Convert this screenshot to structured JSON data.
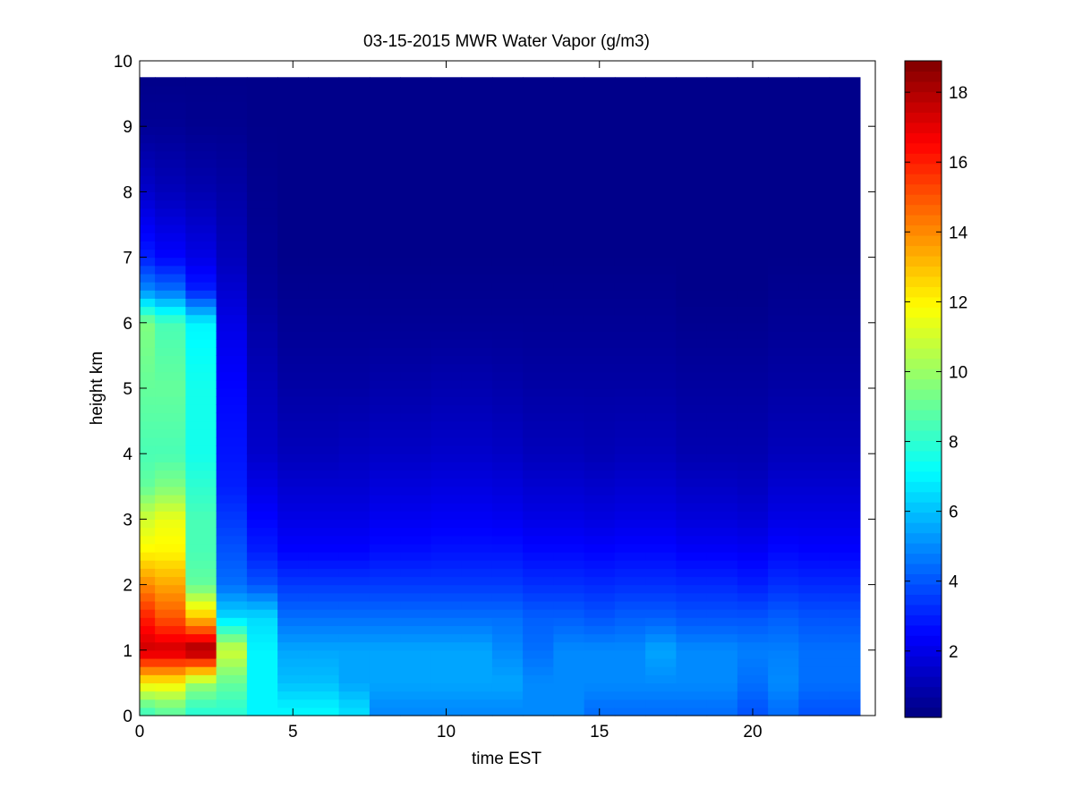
{
  "chart_data": {
    "type": "heatmap",
    "title": "03-15-2015 MWR Water Vapor (g/m3)",
    "xlabel": "time EST",
    "ylabel": "height km",
    "xlim": [
      0,
      24
    ],
    "ylim": [
      0,
      10
    ],
    "x_ticks": [
      0,
      5,
      10,
      15,
      20
    ],
    "y_ticks": [
      0,
      1,
      2,
      3,
      4,
      5,
      6,
      7,
      8,
      9,
      10
    ],
    "colormap": "jet",
    "colorbar": {
      "range": [
        0.1,
        18.9
      ],
      "ticks": [
        2,
        4,
        6,
        8,
        10,
        12,
        14,
        16,
        18
      ],
      "placement": "right"
    },
    "data_extent": {
      "x": [
        0,
        23.5
      ],
      "y": [
        0,
        9.75
      ]
    },
    "x": [
      0,
      1,
      2,
      3,
      4,
      5,
      6,
      7,
      8,
      9,
      10,
      11,
      12,
      13,
      14,
      15,
      16,
      17,
      18,
      19,
      20,
      21,
      22,
      23
    ],
    "y_levels": [
      0.1,
      0.5,
      1.0,
      1.5,
      2.0,
      2.5,
      3.0,
      3.5,
      4.0,
      5.0,
      6.0,
      6.5,
      7.0,
      8.0,
      9.0,
      9.75
    ],
    "profiles": [
      [
        8.5,
        12,
        17.5,
        16,
        14,
        12,
        11,
        9,
        8.5,
        9,
        9.5,
        5,
        3,
        1.5,
        0.5,
        0.3
      ],
      [
        9,
        12,
        17.5,
        15,
        13.5,
        12,
        11.5,
        9.5,
        8.5,
        9,
        8.5,
        4.5,
        2.5,
        1.2,
        0.5,
        0.3
      ],
      [
        8,
        10,
        18.5,
        13,
        9,
        8.5,
        8.5,
        8,
        7.5,
        7.5,
        7,
        3,
        2,
        1,
        0.4,
        0.3
      ],
      [
        8,
        9,
        11,
        6.5,
        4.5,
        4,
        3.5,
        3,
        2.8,
        2.5,
        2,
        1.6,
        1.2,
        0.8,
        0.4,
        0.3
      ],
      [
        7,
        7,
        7,
        6.5,
        4,
        3,
        2.5,
        2,
        1.5,
        1.2,
        0.8,
        0.6,
        0.5,
        0.4,
        0.3,
        0.3
      ],
      [
        7,
        6,
        5.5,
        4.5,
        3.5,
        2.5,
        2,
        1.6,
        1.2,
        0.8,
        0.5,
        0.4,
        0.3,
        0.3,
        0.3,
        0.3
      ],
      [
        7,
        6,
        5.5,
        4.5,
        3.5,
        2.5,
        2,
        1.6,
        1.2,
        0.8,
        0.5,
        0.4,
        0.3,
        0.3,
        0.3,
        0.3
      ],
      [
        6.5,
        5.5,
        5.5,
        4.5,
        3.5,
        2.5,
        2,
        1.6,
        1.3,
        0.8,
        0.5,
        0.4,
        0.3,
        0.3,
        0.3,
        0.3
      ],
      [
        5,
        5.5,
        5.5,
        4.5,
        3.5,
        2.7,
        2.2,
        1.8,
        1.4,
        0.9,
        0.5,
        0.4,
        0.3,
        0.3,
        0.3,
        0.3
      ],
      [
        5,
        5.5,
        5.5,
        4.5,
        3.5,
        2.7,
        2.2,
        1.8,
        1.4,
        0.9,
        0.5,
        0.4,
        0.3,
        0.3,
        0.3,
        0.3
      ],
      [
        5,
        5.5,
        5.5,
        4.5,
        3.5,
        2.8,
        2.3,
        1.9,
        1.5,
        1.0,
        0.5,
        0.4,
        0.3,
        0.3,
        0.3,
        0.3
      ],
      [
        5,
        5.5,
        5.5,
        4.5,
        3.5,
        2.8,
        2.3,
        1.9,
        1.5,
        1.0,
        0.5,
        0.4,
        0.3,
        0.3,
        0.3,
        0.3
      ],
      [
        5,
        5.5,
        5.0,
        4.5,
        3.5,
        2.8,
        2.2,
        1.8,
        1.4,
        0.9,
        0.5,
        0.4,
        0.3,
        0.3,
        0.3,
        0.3
      ],
      [
        5,
        5.0,
        4.5,
        4.2,
        3.3,
        2.6,
        2.0,
        1.6,
        1.2,
        0.8,
        0.5,
        0.4,
        0.3,
        0.3,
        0.3,
        0.3
      ],
      [
        5,
        5.0,
        5.0,
        4.2,
        3.3,
        2.6,
        2.0,
        1.6,
        1.2,
        0.8,
        0.5,
        0.4,
        0.3,
        0.3,
        0.3,
        0.3
      ],
      [
        4.5,
        5.0,
        5.0,
        4.0,
        3.2,
        2.5,
        1.9,
        1.5,
        1.1,
        0.8,
        0.5,
        0.4,
        0.3,
        0.3,
        0.3,
        0.3
      ],
      [
        4.5,
        5.0,
        5.0,
        4.2,
        3.3,
        2.6,
        2.0,
        1.6,
        1.2,
        0.8,
        0.5,
        0.4,
        0.3,
        0.3,
        0.3,
        0.3
      ],
      [
        4.5,
        5.0,
        5.5,
        4.2,
        3.3,
        2.6,
        2.0,
        1.6,
        1.2,
        0.8,
        0.5,
        0.4,
        0.3,
        0.3,
        0.3,
        0.3
      ],
      [
        4.5,
        5.0,
        5.0,
        4.0,
        3.2,
        2.4,
        1.8,
        1.4,
        1.0,
        0.7,
        0.4,
        0.3,
        0.3,
        0.3,
        0.3,
        0.3
      ],
      [
        4.5,
        5.0,
        5.0,
        4.0,
        3.2,
        2.4,
        1.8,
        1.4,
        1.0,
        0.7,
        0.4,
        0.3,
        0.3,
        0.3,
        0.3,
        0.3
      ],
      [
        4.0,
        4.5,
        4.8,
        4.0,
        3.0,
        2.3,
        1.7,
        1.3,
        1.0,
        0.7,
        0.4,
        0.3,
        0.3,
        0.3,
        0.3,
        0.3
      ],
      [
        4.5,
        5.0,
        4.8,
        4.2,
        3.3,
        2.6,
        2.0,
        1.6,
        1.2,
        0.8,
        0.5,
        0.4,
        0.3,
        0.3,
        0.3,
        0.3
      ],
      [
        4.0,
        4.5,
        4.5,
        4.0,
        3.2,
        2.5,
        2.0,
        1.6,
        1.2,
        0.8,
        0.5,
        0.4,
        0.3,
        0.3,
        0.3,
        0.3
      ],
      [
        4.0,
        4.5,
        4.5,
        4.0,
        3.2,
        2.5,
        2.0,
        1.6,
        1.2,
        0.8,
        0.5,
        0.4,
        0.3,
        0.3,
        0.3,
        0.3
      ]
    ]
  }
}
